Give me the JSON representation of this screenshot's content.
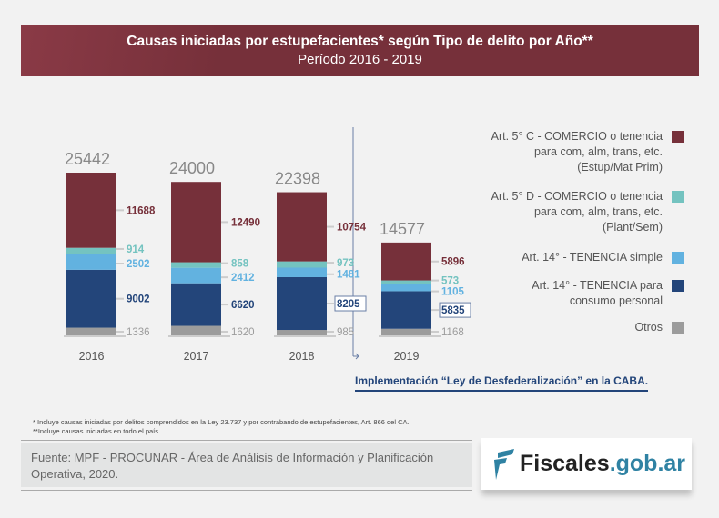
{
  "header": {
    "title": "Causas iniciadas por estupefacientes* según Tipo de delito por Año**",
    "subtitle": "Período 2016 - 2019"
  },
  "chart_data": {
    "type": "bar",
    "stacked": true,
    "categories": [
      "2016",
      "2017",
      "2018",
      "2019"
    ],
    "totals": [
      25442,
      24000,
      22398,
      14577
    ],
    "series": [
      {
        "name": "Otros",
        "color": "#9c9c9c",
        "values": [
          1336,
          1620,
          985,
          1168
        ]
      },
      {
        "name": "Art. 14° - TENENCIA para consumo personal",
        "color": "#23457a",
        "values": [
          9002,
          6620,
          8205,
          5835
        ]
      },
      {
        "name": "Art. 14° - TENENCIA simple",
        "color": "#62b2e0",
        "values": [
          2502,
          2412,
          1481,
          1105
        ]
      },
      {
        "name": "Art. 5° D - COMERCIO o tenencia para com, alm, trans, etc. (Plant/Sem)",
        "color": "#74c3c0",
        "values": [
          914,
          858,
          973,
          573
        ]
      },
      {
        "name": "Art. 5° C - COMERCIO o tenencia para com, alm, trans, etc. (Estup/Mat Prim)",
        "color": "#76303a",
        "values": [
          11688,
          12490,
          10754,
          5896
        ]
      }
    ],
    "legend": [
      "Art. 5° C - COMERCIO o tenencia para com, alm, trans, etc. (Estup/Mat Prim)",
      "Art. 5° D - COMERCIO o tenencia para com, alm, trans, etc. (Plant/Sem)",
      "Art. 14° - TENENCIA simple",
      "Art. 14° - TENENCIA para consumo personal",
      "Otros"
    ],
    "annotation": "Implementación “Ley de Desfederalización” en la CABA."
  },
  "legend_lines": [
    [
      "Art. 5° C - COMERCIO o tenencia",
      "para com, alm, trans, etc.",
      "(Estup/Mat Prim)"
    ],
    [
      "Art. 5° D - COMERCIO o tenencia",
      "para com, alm, trans, etc.",
      "(Plant/Sem)"
    ],
    [
      "Art. 14° - TENENCIA simple"
    ],
    [
      "Art. 14° - TENENCIA para",
      "consumo personal"
    ],
    [
      "Otros"
    ]
  ],
  "notes": [
    "* Incluye causas iniciadas por delitos comprendidos en la Ley 23.737 y por contrabando de estupefacientes, Art. 866 del CA.",
    "**Incluye causas iniciadas en todo el país"
  ],
  "source": "Fuente: MPF - PROCUNAR - Área de Análisis de Información y Planificación Operativa, 2020.",
  "logo": {
    "name": "Fiscales",
    "domain": ".gob.ar"
  }
}
